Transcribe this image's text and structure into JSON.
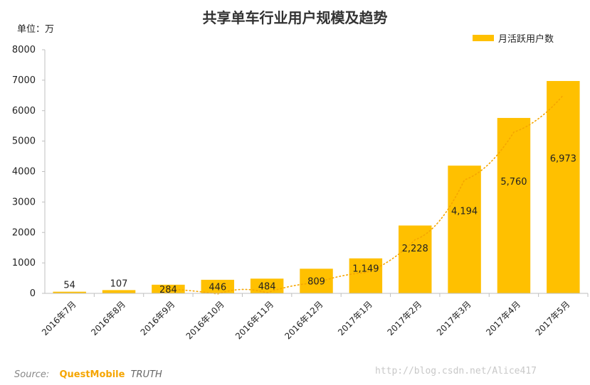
{
  "chart_data": {
    "type": "bar",
    "title": "共享单车行业用户规模及趋势",
    "unit_label": "单位：万",
    "categories": [
      "2016年7月",
      "2016年8月",
      "2016年9月",
      "2016年10月",
      "2016年11月",
      "2016年12月",
      "2017年1月",
      "2017年2月",
      "2017年3月",
      "2017年4月",
      "2017年5月"
    ],
    "series": [
      {
        "name": "月活跃用户数",
        "color": "#FFC000",
        "values": [
          54,
          107,
          284,
          446,
          484,
          809,
          1149,
          2228,
          4194,
          5760,
          6973
        ],
        "labels": [
          "54",
          "107",
          "284",
          "446",
          "484",
          "809",
          "1,149",
          "2,228",
          "4,194",
          "5,760",
          "6,973"
        ]
      }
    ],
    "trendline": {
      "style": "dotted",
      "color": "#F5A500"
    },
    "ylim": [
      0,
      8000
    ],
    "yticks": [
      "0",
      "1000",
      "2000",
      "3000",
      "4000",
      "5000",
      "6000",
      "7000",
      "8000"
    ],
    "grid": false,
    "legend_position": "top-right"
  },
  "source": {
    "label": "Source:",
    "brand": "QuestMobile",
    "suffix": "TRUTH"
  },
  "watermark": "http://blog.csdn.net/Alice417"
}
